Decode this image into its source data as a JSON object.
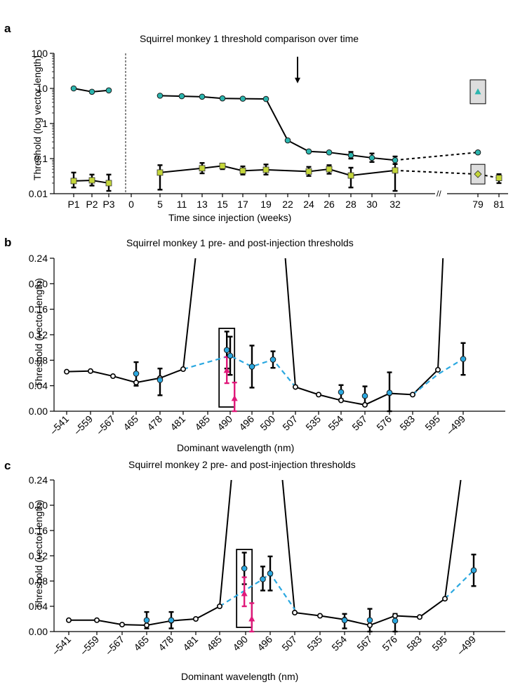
{
  "chart_data": [
    {
      "panel": "a",
      "type": "line",
      "title": "Squirrel monkey 1 threshold comparison over time",
      "xlabel": "Time since injection (weeks)",
      "ylabel": "Threshold (log vector length)",
      "yscale": "log",
      "ylim": [
        0.01,
        100
      ],
      "yticks": [
        "0.01",
        "0.1",
        "1",
        "10",
        "100"
      ],
      "categories": [
        "P1",
        "P2",
        "P3",
        "0",
        "5",
        "11",
        "13",
        "15",
        "17",
        "19",
        "22",
        "24",
        "26",
        "28",
        "30",
        "32",
        "79",
        "81"
      ],
      "series": [
        {
          "color": "#2bb5ae",
          "marker": "circle",
          "points": [
            {
              "x": "P1",
              "y": 10
            },
            {
              "x": "P2",
              "y": 8
            },
            {
              "x": "P3",
              "y": 8.8
            },
            {
              "x": "5",
              "y": 6.2
            },
            {
              "x": "11",
              "y": 6.0
            },
            {
              "x": "13",
              "y": 5.8
            },
            {
              "x": "15",
              "y": 5.2
            },
            {
              "x": "17",
              "y": 5.1
            },
            {
              "x": "19",
              "y": 5.0
            },
            {
              "x": "22",
              "y": 0.33
            },
            {
              "x": "24",
              "y": 0.16
            },
            {
              "x": "26",
              "y": 0.15
            },
            {
              "x": "28",
              "y": 0.125,
              "err": [
                0.1,
                0.155
              ]
            },
            {
              "x": "30",
              "y": 0.105,
              "err": [
                0.08,
                0.14
              ]
            },
            {
              "x": "32",
              "y": 0.09,
              "err": [
                0.07,
                0.115
              ]
            },
            {
              "x": "79",
              "y": 0.15
            }
          ]
        },
        {
          "color": "#c4d63a",
          "marker": "square",
          "points": [
            {
              "x": "P1",
              "y": 0.023,
              "err": [
                0.015,
                0.04
              ]
            },
            {
              "x": "P2",
              "y": 0.024,
              "err": [
                0.017,
                0.035
              ]
            },
            {
              "x": "P3",
              "y": 0.02,
              "err": [
                0.012,
                0.035
              ]
            },
            {
              "x": "5",
              "y": 0.04,
              "err": [
                0.013,
                0.065
              ]
            },
            {
              "x": "13",
              "y": 0.053,
              "err": [
                0.038,
                0.075
              ]
            },
            {
              "x": "15",
              "y": 0.062,
              "err": [
                0.05,
                0.072
              ]
            },
            {
              "x": "17",
              "y": 0.045,
              "err": [
                0.035,
                0.06
              ]
            },
            {
              "x": "19",
              "y": 0.048,
              "err": [
                0.035,
                0.068
              ]
            },
            {
              "x": "24",
              "y": 0.043,
              "err": [
                0.032,
                0.058
              ]
            },
            {
              "x": "26",
              "y": 0.05,
              "err": [
                0.037,
                0.065
              ]
            },
            {
              "x": "28",
              "y": 0.033,
              "err": [
                0.015,
                0.055
              ]
            },
            {
              "x": "32",
              "y": 0.046,
              "err": [
                0.012,
                0.07
              ]
            },
            {
              "x": "79",
              "y": 0.036,
              "err": [
                0.028,
                0.046
              ]
            },
            {
              "x": "81",
              "y": 0.028,
              "err": [
                0.02,
                0.036
              ]
            }
          ]
        }
      ],
      "highlighted_points": [
        {
          "x": "79",
          "y": 8,
          "marker": "triangle",
          "color": "#2bb5ae"
        }
      ],
      "annotations": [
        {
          "type": "arrow",
          "x": "19",
          "y_from": 80,
          "y_to": 14
        },
        {
          "type": "vertical-dashed-line",
          "between": [
            "P3",
            "0"
          ]
        },
        {
          "type": "axis-break",
          "between": [
            "32",
            "79"
          ],
          "label": "//"
        }
      ]
    },
    {
      "panel": "b",
      "type": "line",
      "title": "Squirrel monkey 1 pre- and post-injection thresholds",
      "xlabel": "Dominant wavelength (nm)",
      "ylabel": "Threshold (vector length)",
      "ylim": [
        0,
        0.24
      ],
      "yticks": [
        "0.00",
        "0.04",
        "0.08",
        "0.12",
        "0.16",
        "0.20",
        "0.24"
      ],
      "categories": [
        "–541",
        "–559",
        "–567",
        "465",
        "478",
        "481",
        "485",
        "490",
        "496",
        "500",
        "507",
        "535",
        "554",
        "567",
        "576",
        "583",
        "595",
        "–499"
      ],
      "series": [
        {
          "color": "#000000",
          "style": "solid",
          "marker": "open-circle",
          "segments": [
            [
              {
                "x": "–541",
                "y": 0.062
              },
              {
                "x": "–559",
                "y": 0.063
              },
              {
                "x": "–567",
                "y": 0.055
              },
              {
                "x": "465",
                "y": 0.045
              },
              {
                "x": "478",
                "y": 0.052
              },
              {
                "x": "481",
                "y": 0.066
              },
              {
                "x": 5.5,
                "y": 0.24
              }
            ],
            [
              {
                "x": 9.55,
                "y": 0.24
              },
              {
                "x": "507",
                "y": 0.038
              },
              {
                "x": "535",
                "y": 0.026
              },
              {
                "x": "554",
                "y": 0.017
              },
              {
                "x": "567",
                "y": 0.01
              },
              {
                "x": "576",
                "y": 0.028
              },
              {
                "x": "583",
                "y": 0.026
              },
              {
                "x": "595",
                "y": 0.065
              },
              {
                "x": 16.2,
                "y": 0.24
              }
            ]
          ]
        },
        {
          "color": "#2ba8e0",
          "style": "dashed",
          "marker": "circle",
          "segments": [
            [
              {
                "x": "481",
                "y": 0.066
              },
              {
                "x": "490",
                "y": 0.087
              },
              {
                "x": "496",
                "y": 0.07,
                "err": [
                  0.037,
                  0.103
                ]
              },
              {
                "x": "500",
                "y": 0.081,
                "err": [
                  0.068,
                  0.094
                ]
              },
              {
                "x": "507",
                "y": 0.038
              }
            ],
            [
              {
                "x": "583",
                "y": 0.026
              },
              {
                "x": "595",
                "y": 0.058
              },
              {
                "x": "–499",
                "y": 0.082,
                "err": [
                  0.057,
                  0.107
                ]
              }
            ]
          ],
          "points": [
            {
              "x": "465",
              "y": 0.059,
              "err": [
                0.04,
                0.077
              ]
            },
            {
              "x": "478",
              "y": 0.049,
              "err": [
                0.025,
                0.067
              ]
            },
            {
              "x": 6.85,
              "y": 0.096,
              "err": [
                0.067,
                0.125
              ]
            },
            {
              "x": "490",
              "y": 0.087,
              "err": [
                0.057,
                0.117
              ]
            },
            {
              "x": "554",
              "y": 0.03,
              "err": [
                0.019,
                0.041
              ]
            },
            {
              "x": "567",
              "y": 0.024,
              "err": [
                0.009,
                0.039
              ]
            },
            {
              "x": "576",
              "y": 0.029,
              "err": [
                0.0,
                0.061
              ]
            }
          ]
        },
        {
          "color": "#e0197a",
          "marker": "triangle",
          "points": [
            {
              "x": 6.85,
              "y": 0.064,
              "err": [
                0.044,
                0.085
              ]
            },
            {
              "x": 7.2,
              "y": 0.02,
              "err": [
                0.0,
                0.045
              ]
            }
          ]
        }
      ],
      "box_around": {
        "x": 6.85,
        "ylim": [
          0.0,
          0.13
        ]
      }
    },
    {
      "panel": "c",
      "type": "line",
      "title": "Squirrel monkey 2 pre- and post-injection thresholds",
      "xlabel": "Dominant wavelength (nm)",
      "ylabel": "Threshold (vector length)",
      "ylim": [
        0,
        0.24
      ],
      "yticks": [
        "0.00",
        "0.04",
        "0.08",
        "0.12",
        "0.16",
        "0.20",
        "0.24"
      ],
      "categories": [
        "–541",
        "–559",
        "–567",
        "465",
        "478",
        "481",
        "485",
        "490",
        "496",
        "507",
        "535",
        "554",
        "567",
        "576",
        "583",
        "595",
        "–499"
      ],
      "series": [
        {
          "color": "#000000",
          "style": "solid",
          "marker": "open-circle",
          "segments": [
            [
              {
                "x": "–541",
                "y": 0.018
              },
              {
                "x": "–559",
                "y": 0.018
              },
              {
                "x": "–567",
                "y": 0.011
              },
              {
                "x": "465",
                "y": 0.01
              },
              {
                "x": "478",
                "y": 0.017
              },
              {
                "x": "481",
                "y": 0.02
              },
              {
                "x": "485",
                "y": 0.04
              },
              {
                "x": 6.45,
                "y": 0.24
              }
            ],
            [
              {
                "x": 8.5,
                "y": 0.24
              },
              {
                "x": "507",
                "y": 0.03
              },
              {
                "x": "535",
                "y": 0.025
              },
              {
                "x": "554",
                "y": 0.019
              },
              {
                "x": "567",
                "y": 0.01
              },
              {
                "x": "576",
                "y": 0.025
              },
              {
                "x": "583",
                "y": 0.023
              },
              {
                "x": "595",
                "y": 0.052
              },
              {
                "x": 15.55,
                "y": 0.24
              }
            ]
          ]
        },
        {
          "color": "#2ba8e0",
          "style": "dashed",
          "marker": "circle",
          "segments": [
            [
              {
                "x": "485",
                "y": 0.04
              },
              {
                "x": 7.7,
                "y": 0.083
              },
              {
                "x": "496",
                "y": 0.092,
                "err": [
                  0.065,
                  0.119
                ]
              },
              {
                "x": "507",
                "y": 0.035
              }
            ],
            [
              {
                "x": "595",
                "y": 0.052
              },
              {
                "x": "–499",
                "y": 0.097,
                "err": [
                  0.072,
                  0.122
                ]
              }
            ]
          ],
          "points": [
            {
              "x": "465",
              "y": 0.018,
              "err": [
                0.005,
                0.031
              ]
            },
            {
              "x": "478",
              "y": 0.018,
              "err": [
                0.005,
                0.031
              ]
            },
            {
              "x": 6.95,
              "y": 0.1,
              "err": [
                0.075,
                0.125
              ]
            },
            {
              "x": 7.7,
              "y": 0.083,
              "err": [
                0.065,
                0.103
              ]
            },
            {
              "x": "554",
              "y": 0.018,
              "err": [
                0.005,
                0.028
              ]
            },
            {
              "x": "567",
              "y": 0.018,
              "err": [
                0.0,
                0.036
              ]
            },
            {
              "x": "576",
              "y": 0.017,
              "err": [
                0.0,
                0.028
              ]
            }
          ]
        },
        {
          "color": "#e0197a",
          "marker": "triangle",
          "points": [
            {
              "x": 6.95,
              "y": 0.06,
              "err": [
                0.04,
                0.086
              ]
            },
            {
              "x": 7.25,
              "y": 0.02,
              "err": [
                0.0,
                0.045
              ]
            }
          ]
        }
      ],
      "box_around": {
        "x": 6.95,
        "ylim": [
          0.0,
          0.13
        ]
      }
    }
  ]
}
